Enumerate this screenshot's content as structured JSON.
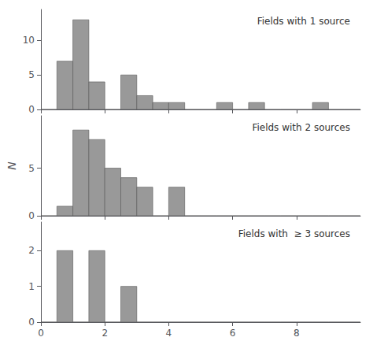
{
  "chart_data": [
    {
      "type": "bar",
      "annotation": "Fields with 1 source",
      "bins": [
        0,
        0.5,
        1.0,
        1.5,
        2.0,
        2.5,
        3.0,
        3.5,
        4.0,
        4.5,
        5.0,
        5.5,
        6.0,
        6.5,
        7.0,
        7.5,
        8.0,
        8.5,
        9.0,
        9.5,
        10.0
      ],
      "values": [
        0,
        7,
        13,
        4,
        0,
        5,
        2,
        1,
        1,
        0,
        0,
        1,
        0,
        1,
        0,
        0,
        0,
        1,
        0,
        0
      ],
      "color": "#999999",
      "xlim": [
        0,
        10.0
      ],
      "xticks": [
        0,
        2,
        4,
        6,
        8
      ],
      "ylim": [
        0,
        14.5
      ],
      "yticks": [
        0,
        5,
        10
      ],
      "grid": false,
      "tick_labels": "y"
    },
    {
      "type": "bar",
      "annotation": "Fields with 2 sources",
      "ylabel": "N",
      "bins": [
        0,
        0.5,
        1.0,
        1.5,
        2.0,
        2.5,
        3.0,
        3.5,
        4.0,
        4.5,
        5.0,
        5.5,
        6.0,
        6.5,
        7.0,
        7.5,
        8.0,
        8.5,
        9.0,
        9.5,
        10.0
      ],
      "values": [
        0,
        1,
        9,
        8,
        5,
        4,
        3,
        0,
        3,
        0,
        0,
        0,
        0,
        0,
        0,
        0,
        0,
        0,
        0,
        0
      ],
      "color": "#999999",
      "xlim": [
        0,
        10.0
      ],
      "xticks": [
        0,
        2,
        4,
        6,
        8
      ],
      "ylim": [
        0,
        10.5
      ],
      "yticks": [
        0,
        5
      ],
      "grid": false,
      "tick_labels": "y"
    },
    {
      "type": "bar",
      "annotation": "Fields with  ≥ 3 sources",
      "bins": [
        0,
        0.5,
        1.0,
        1.5,
        2.0,
        2.5,
        3.0,
        3.5,
        4.0,
        4.5,
        5.0,
        5.5,
        6.0,
        6.5,
        7.0,
        7.5,
        8.0,
        8.5,
        9.0,
        9.5,
        10.0
      ],
      "values": [
        0,
        2,
        0,
        2,
        0,
        1,
        0,
        0,
        0,
        0,
        0,
        0,
        0,
        0,
        0,
        0,
        0,
        0,
        0,
        0
      ],
      "color": "#999999",
      "xlim": [
        0,
        10.0
      ],
      "xticks": [
        0,
        2,
        4,
        6,
        8
      ],
      "ylim": [
        0,
        2.8
      ],
      "yticks": [
        0,
        1,
        2
      ],
      "grid": false
    }
  ]
}
